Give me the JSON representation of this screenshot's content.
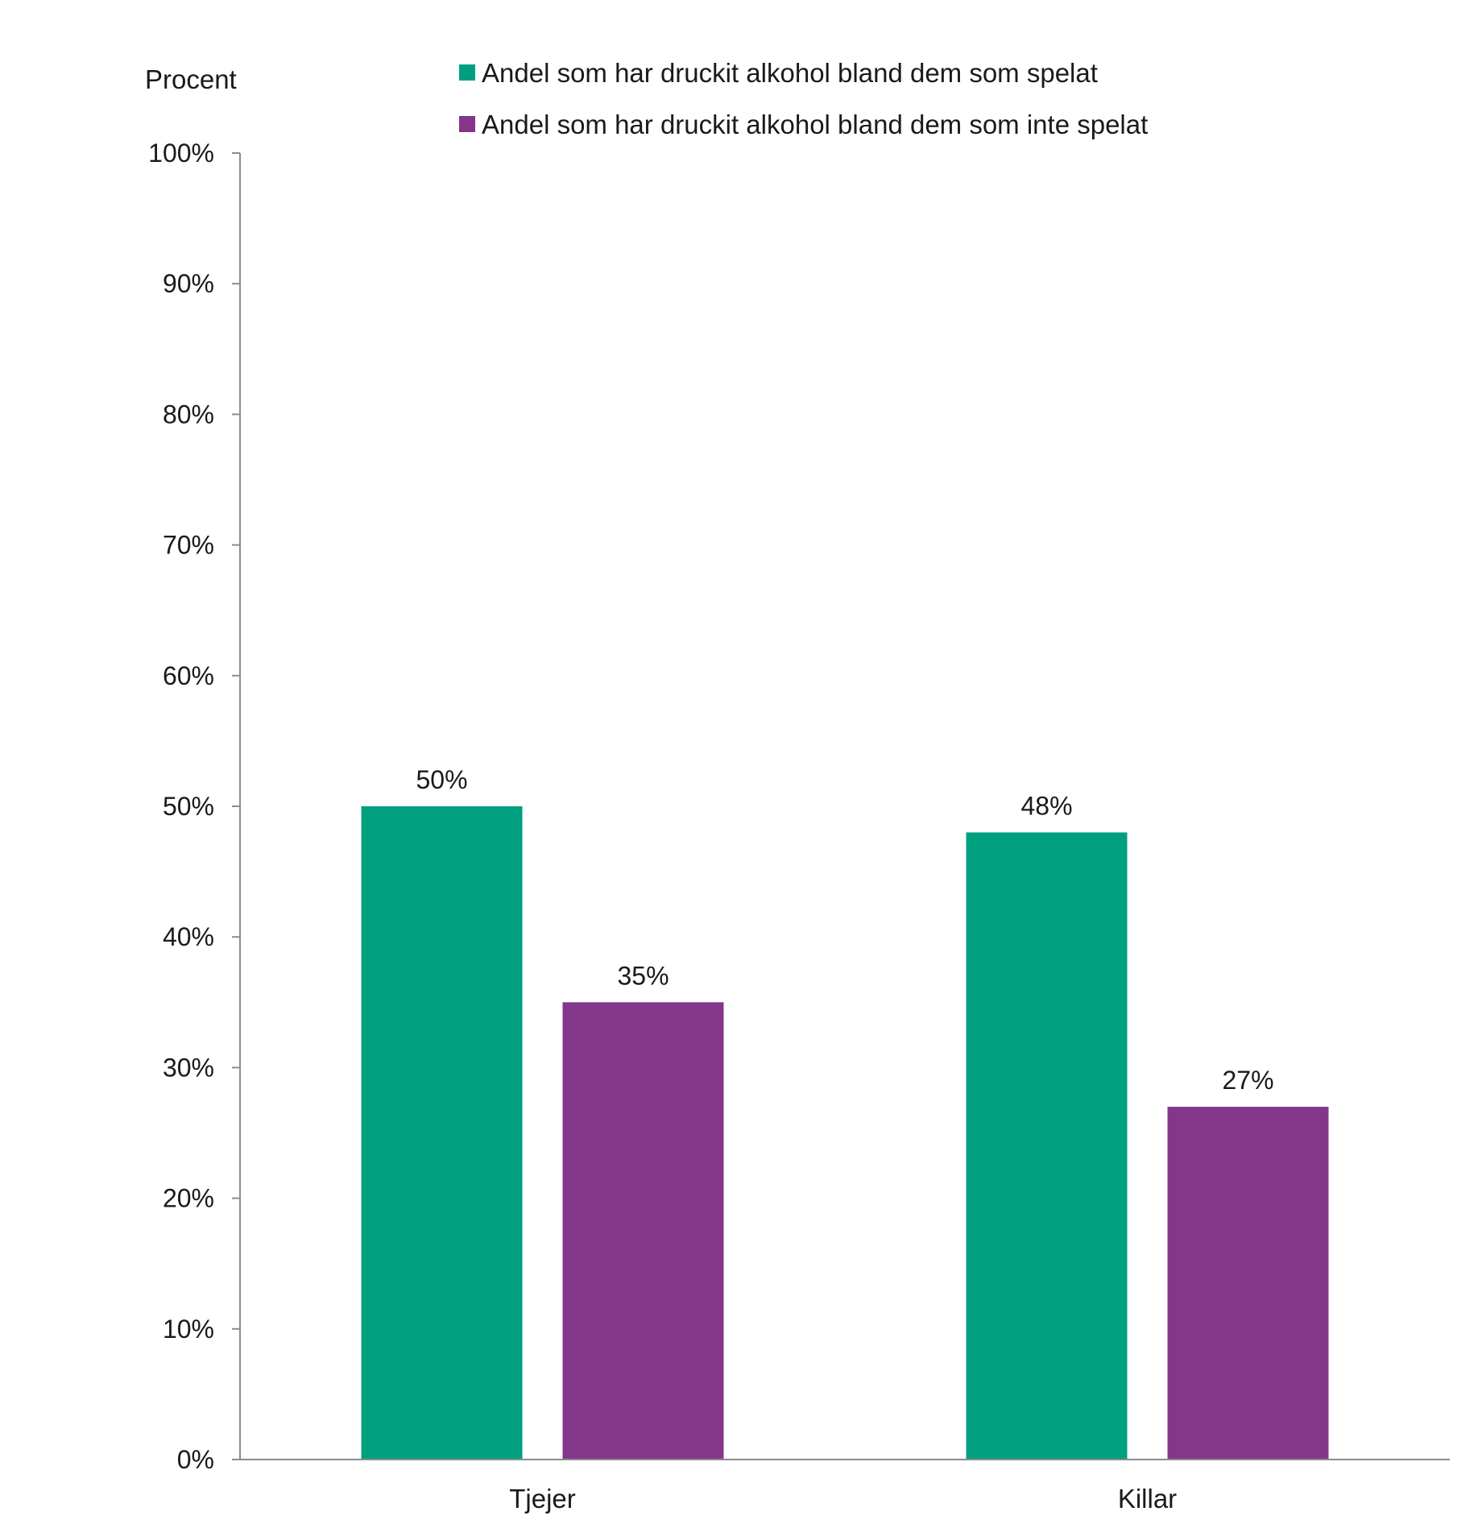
{
  "chart_data": {
    "type": "bar",
    "title": "",
    "ylabel": "Procent",
    "xlabel": "",
    "categories": [
      "Tjejer",
      "Killar"
    ],
    "series": [
      {
        "name": "Andel som har druckit alkohol bland dem som spelat",
        "color": "#009f80",
        "values": [
          50,
          48
        ],
        "labels": [
          "50%",
          "48%"
        ]
      },
      {
        "name": "Andel som har druckit alkohol bland dem som inte spelat",
        "color": "#84378a",
        "values": [
          35,
          27
        ],
        "labels": [
          "35%",
          "27%"
        ]
      }
    ],
    "ylim": [
      0,
      100
    ],
    "yticks": [
      0,
      10,
      20,
      30,
      40,
      50,
      60,
      70,
      80,
      90,
      100
    ],
    "ytick_labels": [
      "0%",
      "10%",
      "20%",
      "30%",
      "40%",
      "50%",
      "60%",
      "70%",
      "80%",
      "90%",
      "100%"
    ],
    "grid": false,
    "legend_position": "top"
  }
}
